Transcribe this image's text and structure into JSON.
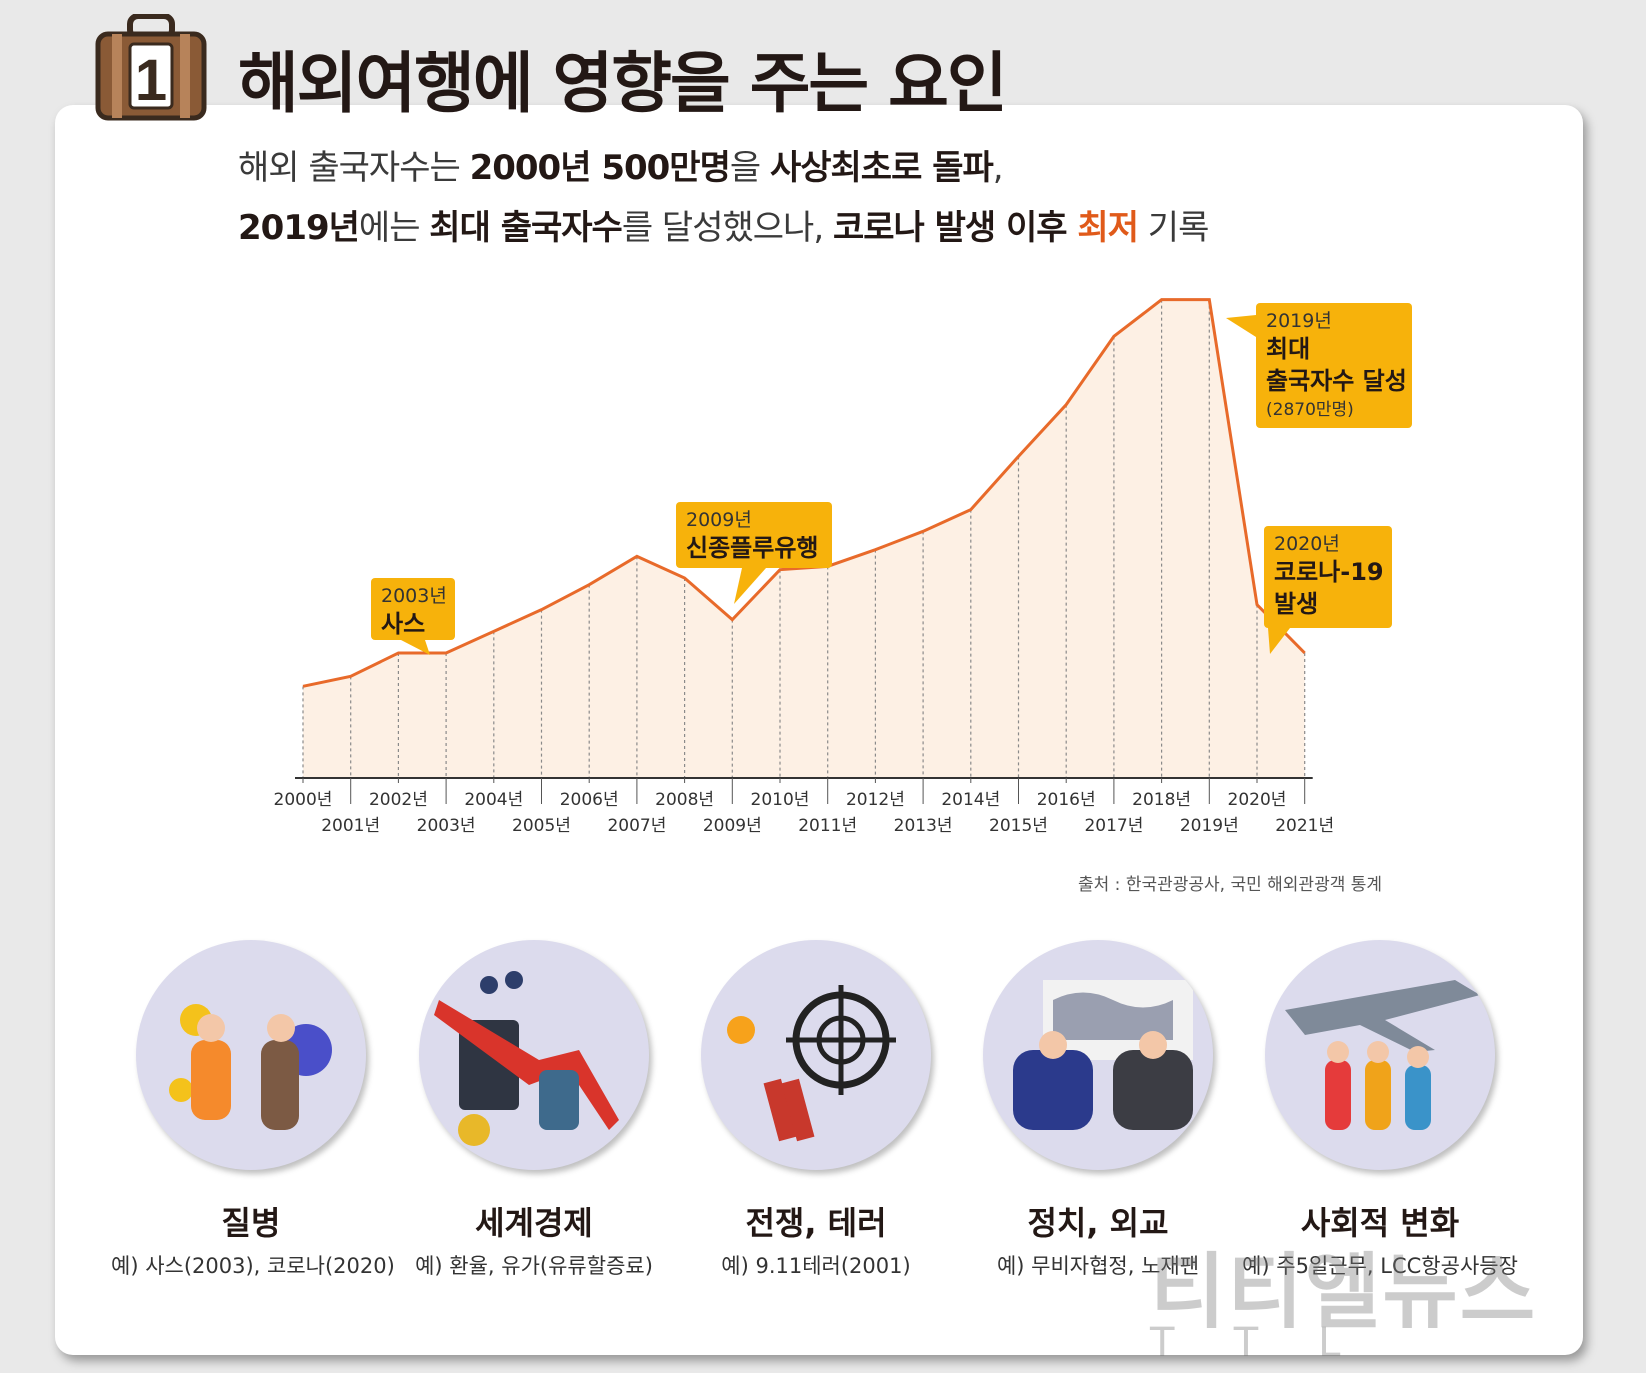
{
  "header": {
    "badge_number": "1",
    "title": "해외여행에 영향을 주는 요인"
  },
  "subtitle": {
    "line1": [
      {
        "text": "해외 출국자수는 ",
        "style": "normal"
      },
      {
        "text": "2000년 500만명",
        "style": "bold"
      },
      {
        "text": "을 ",
        "style": "normal"
      },
      {
        "text": "사상최초로 돌파",
        "style": "bold"
      },
      {
        "text": ",",
        "style": "normal"
      }
    ],
    "line2": [
      {
        "text": "2019년",
        "style": "bold"
      },
      {
        "text": "에는 ",
        "style": "normal"
      },
      {
        "text": "최대 출국자수",
        "style": "bold"
      },
      {
        "text": "를 달성했으나, ",
        "style": "normal"
      },
      {
        "text": "코로나 발생 이후 ",
        "style": "bold"
      },
      {
        "text": "최저",
        "style": "hl"
      },
      {
        "text": " 기록",
        "style": "normal"
      }
    ]
  },
  "chart_data": {
    "type": "area",
    "title": "",
    "xlabel": "",
    "ylabel": "",
    "x": [
      "2000년",
      "2001년",
      "2002년",
      "2003년",
      "2004년",
      "2005년",
      "2006년",
      "2007년",
      "2008년",
      "2009년",
      "2010년",
      "2011년",
      "2012년",
      "2013년",
      "2014년",
      "2015년",
      "2016년",
      "2017년",
      "2018년",
      "2019년",
      "2020년",
      "2021년"
    ],
    "values": [
      550,
      610,
      750,
      750,
      880,
      1010,
      1160,
      1330,
      1200,
      950,
      1250,
      1270,
      1370,
      1480,
      1610,
      1930,
      2240,
      2650,
      2870,
      2870,
      1040,
      750
    ],
    "ylim": [
      0,
      3000
    ],
    "grid": false,
    "colors": {
      "line": "#e86a2a",
      "fill": "#fdf0e4",
      "callout": "#f7b20b"
    },
    "annotations": [
      {
        "index": 3,
        "year": "2003년",
        "text": [
          "사스"
        ]
      },
      {
        "index": 9,
        "year": "2009년",
        "text": [
          "신종플루유행"
        ]
      },
      {
        "index": 19,
        "year": "2019년",
        "text": [
          "최대",
          "출국자수 달성"
        ],
        "note": "(2870만명)"
      },
      {
        "index": 20,
        "year": "2020년",
        "text": [
          "코로나-19",
          "발생"
        ]
      }
    ]
  },
  "source": "출처 : 한국관광공사, 국민 해외관광객 통계",
  "factors": [
    {
      "name": "질병",
      "example": "예) 사스(2003), 코로나(2020)",
      "icon": "virus-people-icon"
    },
    {
      "name": "세계경제",
      "example": "예) 환율, 유가(유류할증료)",
      "icon": "oil-barrel-economy-icon"
    },
    {
      "name": "전쟁, 테러",
      "example": "예) 9.11테러(2001)",
      "icon": "crosshair-dynamite-icon"
    },
    {
      "name": "정치, 외교",
      "example": "예) 무비자협정, 노재팬",
      "icon": "diplomacy-meeting-icon"
    },
    {
      "name": "사회적 변화",
      "example": "예) 주5일근무, LCC항공사등장",
      "icon": "airplane-travelers-icon"
    }
  ],
  "watermark": {
    "main": "티티엘뉴스",
    "sub": "TTL"
  }
}
